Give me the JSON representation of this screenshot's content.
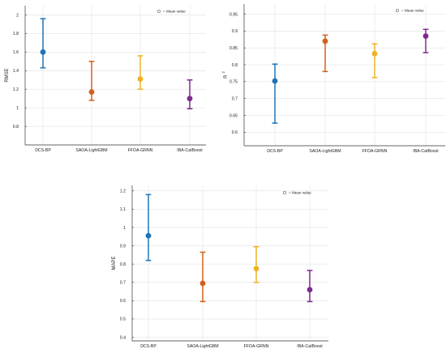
{
  "legend_label": "= Mean value",
  "chart_data": [
    {
      "type": "errorbar",
      "ylabel": "RMSE",
      "categories": [
        "DCS-BP",
        "SAOA-LightGBM",
        "FFOA-GRNN",
        "IBA-CatBoost"
      ],
      "ylim": [
        0.6,
        2.1
      ],
      "yticks": [
        "0.8",
        "1",
        "1.2",
        "1.4",
        "1.6",
        "1.8",
        "2"
      ],
      "ytick_values": [
        0.8,
        1.0,
        1.2,
        1.4,
        1.6,
        1.8,
        2.0
      ],
      "mean": [
        1.6,
        1.17,
        1.31,
        1.1
      ],
      "lower": [
        1.43,
        1.08,
        1.2,
        0.99
      ],
      "upper": [
        1.96,
        1.5,
        1.56,
        1.3
      ],
      "grid": true,
      "legend": "top-right"
    },
    {
      "type": "errorbar",
      "ylabel": "R",
      "ylabel_superscript": "2",
      "categories": [
        "DCS-BP",
        "SAOA-LightGBM",
        "FFOA-GRNN",
        "IBA-CatBoost"
      ],
      "ylim": [
        0.56,
        0.98
      ],
      "yticks": [
        "0.6",
        "0.65",
        "0.7",
        "0.75",
        "0.8",
        "0.85",
        "0.9",
        "0.95"
      ],
      "ytick_values": [
        0.6,
        0.65,
        0.7,
        0.75,
        0.8,
        0.85,
        0.9,
        0.95
      ],
      "mean": [
        0.752,
        0.87,
        0.833,
        0.885
      ],
      "lower": [
        0.627,
        0.78,
        0.762,
        0.836
      ],
      "upper": [
        0.802,
        0.888,
        0.862,
        0.905
      ],
      "grid": true,
      "legend": "top-right"
    },
    {
      "type": "errorbar",
      "ylabel": "MAPE",
      "categories": [
        "DCS-BP",
        "SAOA-LightGBM",
        "FFOA-GRNN",
        "IBA-CatBoost"
      ],
      "ylim": [
        0.38,
        1.23
      ],
      "yticks": [
        "0.4",
        "0.5",
        "0.6",
        "0.7",
        "0.8",
        "0.9",
        "1",
        "1.1",
        "1.2"
      ],
      "ytick_values": [
        0.4,
        0.5,
        0.6,
        0.7,
        0.8,
        0.9,
        1.0,
        1.1,
        1.2
      ],
      "mean": [
        0.955,
        0.695,
        0.775,
        0.66
      ],
      "lower": [
        0.82,
        0.595,
        0.7,
        0.595
      ],
      "upper": [
        1.18,
        0.865,
        0.895,
        0.765
      ],
      "grid": true,
      "legend": "top-right"
    }
  ],
  "colors": {
    "series": [
      "#1f72b6",
      "#d45f1c",
      "#eeb224",
      "#7e2b8e"
    ],
    "grid": "#e0e0e0",
    "axis": "#333333"
  }
}
